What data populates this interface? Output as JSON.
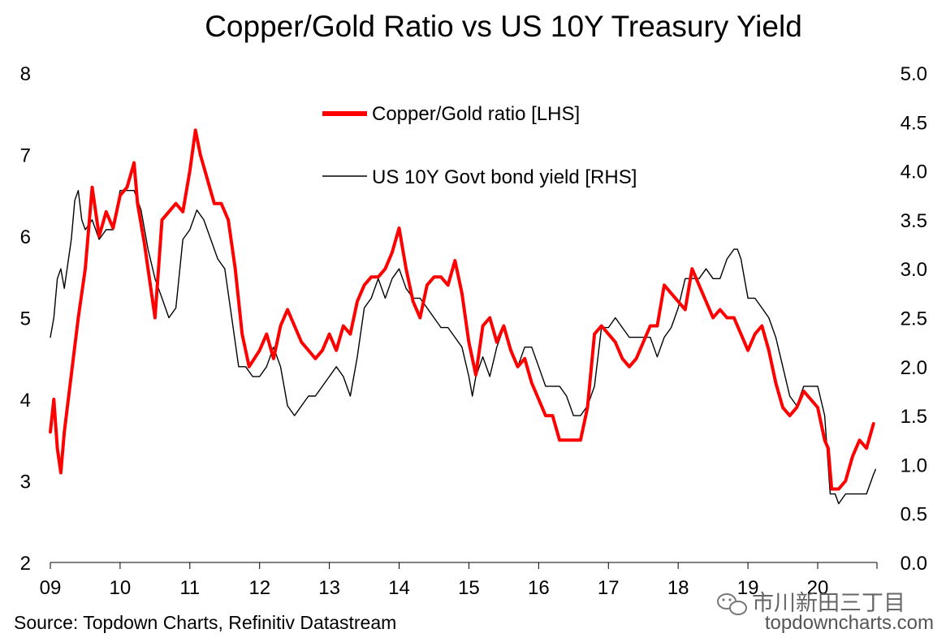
{
  "chart_data": {
    "type": "line",
    "title": "Copper/Gold Ratio vs US 10Y Treasury Yield",
    "x_ticks": [
      "09",
      "10",
      "11",
      "12",
      "13",
      "14",
      "15",
      "16",
      "17",
      "18",
      "19",
      "20"
    ],
    "x_range": [
      2009.0,
      2020.85
    ],
    "y_left": {
      "ylim": [
        2,
        8
      ],
      "ticks": [
        "2",
        "3",
        "4",
        "5",
        "6",
        "7",
        "8"
      ]
    },
    "y_right": {
      "ylim": [
        0.0,
        5.0
      ],
      "ticks": [
        "0.0",
        "0.5",
        "1.0",
        "1.5",
        "2.0",
        "2.5",
        "3.0",
        "3.5",
        "4.0",
        "4.5",
        "5.0"
      ]
    },
    "legend_placement": "top-center",
    "grid": false,
    "series": [
      {
        "name": "Copper/Gold ratio [LHS]",
        "axis": "left",
        "color": "#ff0000",
        "x": [
          2009.0,
          2009.05,
          2009.1,
          2009.15,
          2009.2,
          2009.3,
          2009.4,
          2009.5,
          2009.6,
          2009.7,
          2009.8,
          2009.9,
          2010.0,
          2010.1,
          2010.2,
          2010.25,
          2010.35,
          2010.45,
          2010.5,
          2010.6,
          2010.7,
          2010.8,
          2010.9,
          2011.0,
          2011.08,
          2011.15,
          2011.25,
          2011.35,
          2011.45,
          2011.55,
          2011.65,
          2011.75,
          2011.85,
          2012.0,
          2012.1,
          2012.2,
          2012.3,
          2012.4,
          2012.5,
          2012.6,
          2012.7,
          2012.8,
          2012.9,
          2013.0,
          2013.1,
          2013.2,
          2013.3,
          2013.4,
          2013.5,
          2013.6,
          2013.7,
          2013.8,
          2013.9,
          2014.0,
          2014.1,
          2014.2,
          2014.3,
          2014.4,
          2014.5,
          2014.6,
          2014.7,
          2014.8,
          2014.9,
          2015.0,
          2015.1,
          2015.2,
          2015.3,
          2015.4,
          2015.5,
          2015.6,
          2015.7,
          2015.8,
          2015.9,
          2016.0,
          2016.1,
          2016.2,
          2016.3,
          2016.4,
          2016.5,
          2016.6,
          2016.7,
          2016.8,
          2016.9,
          2017.0,
          2017.1,
          2017.2,
          2017.3,
          2017.4,
          2017.5,
          2017.6,
          2017.7,
          2017.8,
          2017.9,
          2018.0,
          2018.1,
          2018.2,
          2018.3,
          2018.4,
          2018.5,
          2018.6,
          2018.7,
          2018.8,
          2018.9,
          2019.0,
          2019.1,
          2019.2,
          2019.3,
          2019.4,
          2019.5,
          2019.6,
          2019.7,
          2019.8,
          2019.9,
          2020.0,
          2020.1,
          2020.15,
          2020.2,
          2020.3,
          2020.4,
          2020.5,
          2020.6,
          2020.7,
          2020.8
        ],
        "values": [
          3.6,
          4.0,
          3.4,
          3.1,
          3.6,
          4.3,
          5.0,
          5.6,
          6.6,
          6.0,
          6.3,
          6.1,
          6.5,
          6.6,
          6.9,
          6.4,
          5.9,
          5.3,
          5.0,
          6.2,
          6.3,
          6.4,
          6.3,
          6.8,
          7.3,
          7.0,
          6.7,
          6.4,
          6.4,
          6.2,
          5.6,
          4.8,
          4.4,
          4.6,
          4.8,
          4.5,
          4.9,
          5.1,
          4.9,
          4.7,
          4.6,
          4.5,
          4.6,
          4.8,
          4.6,
          4.9,
          4.8,
          5.2,
          5.4,
          5.5,
          5.5,
          5.6,
          5.8,
          6.1,
          5.6,
          5.2,
          5.0,
          5.4,
          5.5,
          5.5,
          5.4,
          5.7,
          5.3,
          4.7,
          4.3,
          4.9,
          5.0,
          4.7,
          4.9,
          4.6,
          4.4,
          4.5,
          4.2,
          4.0,
          3.8,
          3.8,
          3.5,
          3.5,
          3.5,
          3.5,
          3.9,
          4.8,
          4.9,
          4.8,
          4.7,
          4.5,
          4.4,
          4.5,
          4.7,
          4.9,
          4.9,
          5.4,
          5.3,
          5.2,
          5.1,
          5.6,
          5.4,
          5.2,
          5.0,
          5.1,
          5.0,
          5.0,
          4.8,
          4.6,
          4.8,
          4.9,
          4.6,
          4.2,
          3.9,
          3.8,
          3.9,
          4.1,
          4.0,
          3.9,
          3.5,
          3.4,
          2.9,
          2.9,
          3.0,
          3.3,
          3.5,
          3.4,
          3.7
        ]
      },
      {
        "name": "US 10Y Govt bond yield [RHS]",
        "axis": "right",
        "color": "#000000",
        "x": [
          2009.0,
          2009.05,
          2009.1,
          2009.15,
          2009.2,
          2009.3,
          2009.35,
          2009.4,
          2009.45,
          2009.5,
          2009.6,
          2009.7,
          2009.8,
          2009.9,
          2010.0,
          2010.1,
          2010.2,
          2010.3,
          2010.4,
          2010.5,
          2010.6,
          2010.7,
          2010.8,
          2010.9,
          2011.0,
          2011.1,
          2011.2,
          2011.3,
          2011.4,
          2011.5,
          2011.6,
          2011.7,
          2011.8,
          2011.9,
          2012.0,
          2012.1,
          2012.2,
          2012.3,
          2012.4,
          2012.5,
          2012.6,
          2012.7,
          2012.8,
          2012.9,
          2013.0,
          2013.1,
          2013.2,
          2013.3,
          2013.4,
          2013.5,
          2013.6,
          2013.7,
          2013.8,
          2013.9,
          2014.0,
          2014.1,
          2014.2,
          2014.3,
          2014.4,
          2014.5,
          2014.6,
          2014.7,
          2014.8,
          2014.9,
          2015.0,
          2015.05,
          2015.1,
          2015.2,
          2015.3,
          2015.4,
          2015.5,
          2015.6,
          2015.7,
          2015.8,
          2015.9,
          2016.0,
          2016.1,
          2016.2,
          2016.3,
          2016.4,
          2016.5,
          2016.6,
          2016.7,
          2016.8,
          2016.9,
          2017.0,
          2017.1,
          2017.2,
          2017.3,
          2017.4,
          2017.5,
          2017.6,
          2017.7,
          2017.8,
          2017.9,
          2018.0,
          2018.1,
          2018.2,
          2018.3,
          2018.4,
          2018.5,
          2018.6,
          2018.7,
          2018.8,
          2018.85,
          2018.9,
          2019.0,
          2019.1,
          2019.2,
          2019.3,
          2019.4,
          2019.5,
          2019.6,
          2019.7,
          2019.8,
          2019.9,
          2020.0,
          2020.1,
          2020.18,
          2020.25,
          2020.3,
          2020.4,
          2020.5,
          2020.6,
          2020.7,
          2020.8,
          2020.83
        ],
        "values": [
          2.3,
          2.5,
          2.9,
          3.0,
          2.8,
          3.3,
          3.7,
          3.8,
          3.5,
          3.4,
          3.5,
          3.3,
          3.4,
          3.4,
          3.8,
          3.8,
          3.8,
          3.6,
          3.2,
          2.9,
          2.7,
          2.5,
          2.6,
          3.3,
          3.4,
          3.6,
          3.5,
          3.3,
          3.1,
          3.0,
          2.5,
          2.0,
          2.0,
          1.9,
          1.9,
          2.0,
          2.2,
          2.0,
          1.6,
          1.5,
          1.6,
          1.7,
          1.7,
          1.8,
          1.9,
          2.0,
          1.9,
          1.7,
          2.1,
          2.6,
          2.7,
          2.9,
          2.7,
          2.9,
          3.0,
          2.8,
          2.7,
          2.7,
          2.6,
          2.5,
          2.4,
          2.4,
          2.3,
          2.2,
          1.9,
          1.7,
          1.9,
          2.1,
          1.9,
          2.2,
          2.4,
          2.2,
          2.0,
          2.2,
          2.2,
          2.0,
          1.8,
          1.8,
          1.8,
          1.7,
          1.5,
          1.5,
          1.6,
          1.8,
          2.4,
          2.4,
          2.5,
          2.4,
          2.3,
          2.3,
          2.3,
          2.3,
          2.1,
          2.3,
          2.4,
          2.6,
          2.9,
          2.9,
          2.9,
          3.0,
          2.9,
          2.9,
          3.1,
          3.2,
          3.2,
          3.1,
          2.7,
          2.7,
          2.6,
          2.5,
          2.3,
          2.0,
          1.7,
          1.6,
          1.8,
          1.8,
          1.8,
          1.5,
          0.7,
          0.7,
          0.6,
          0.7,
          0.7,
          0.7,
          0.7,
          0.9,
          0.95
        ]
      }
    ]
  },
  "footer": {
    "source": "Source: Topdown Charts, Refinitiv Datastream",
    "website": "topdowncharts.com",
    "wechat_label": "市川新田三丁目"
  }
}
